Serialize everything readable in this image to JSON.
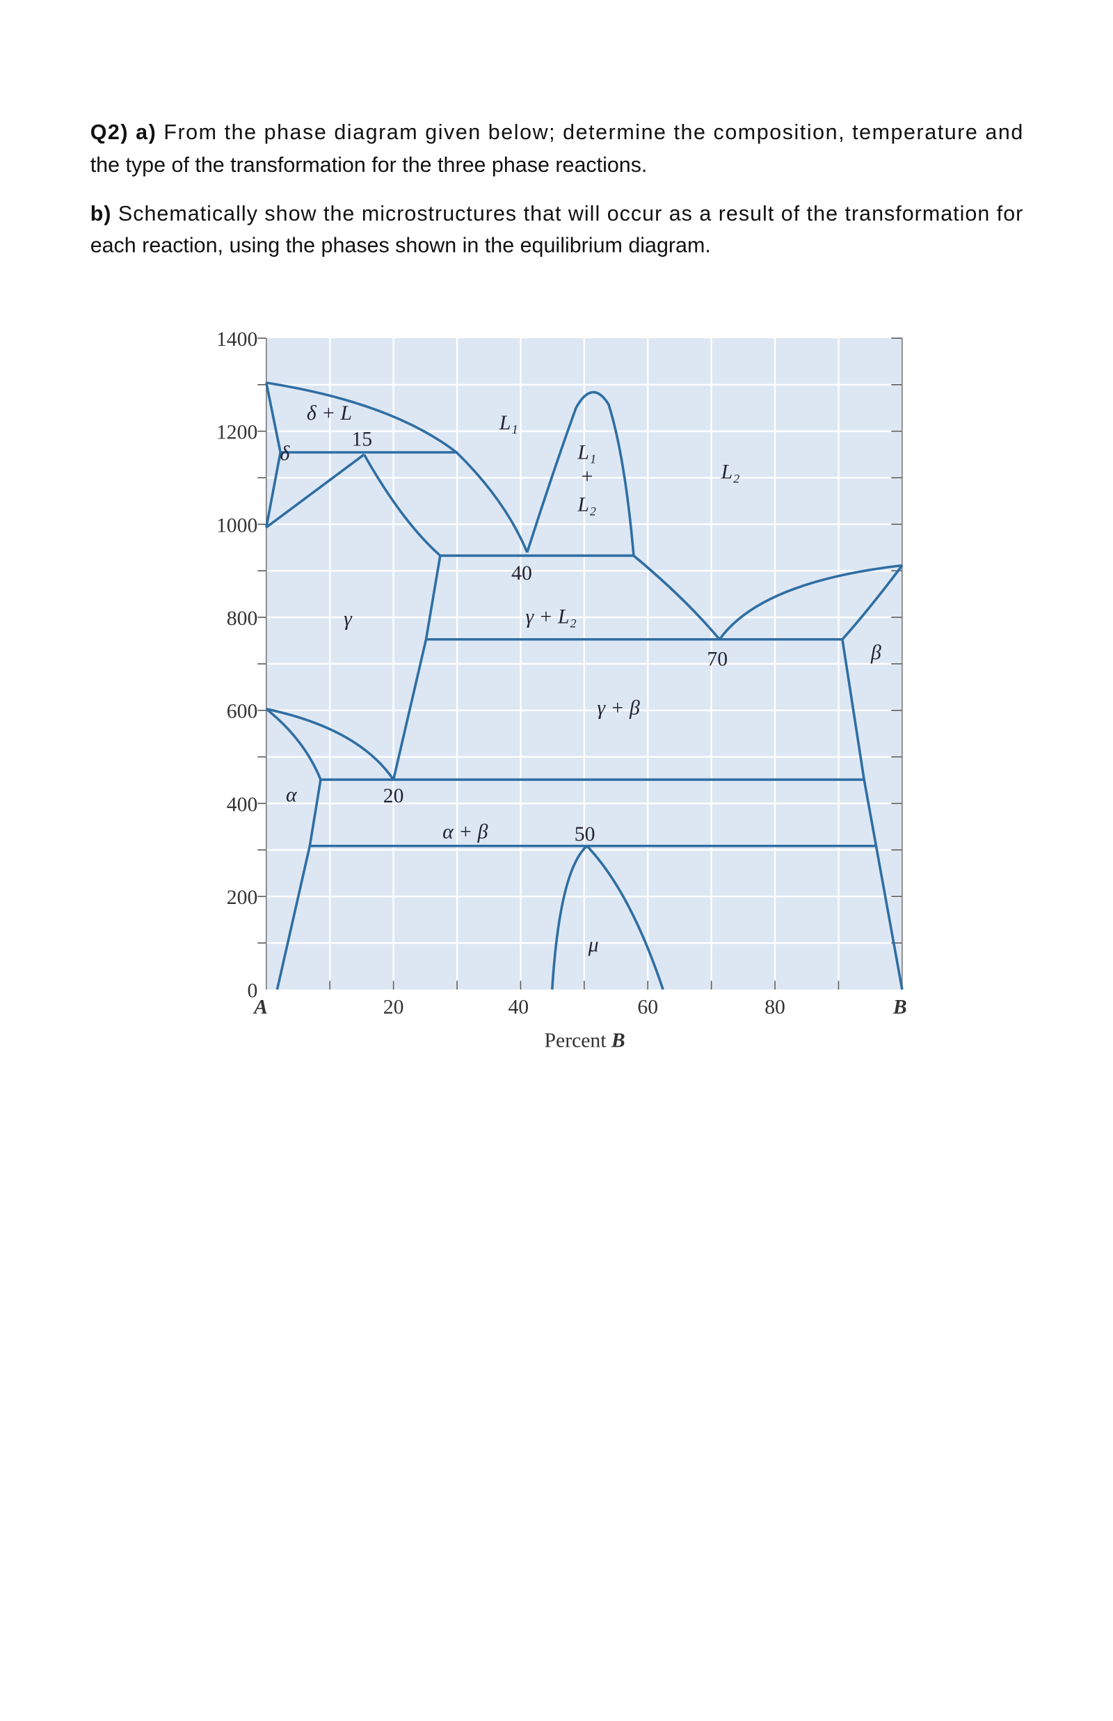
{
  "question": {
    "part_a": {
      "label": "Q2) a)",
      "lines": [
        "From the phase diagram given below; determine the composition, temperature and",
        "the type of the transformation for the three phase reactions."
      ]
    },
    "part_b": {
      "label": "b)",
      "lines": [
        "Schematically show the microstructures that will occur as a result of the transformation for",
        "each reaction, using the phases shown in the equilibrium diagram."
      ]
    }
  },
  "diagram": {
    "y_axis_ticks": [
      "1400",
      "1200",
      "1000",
      "800",
      "600",
      "400",
      "200",
      "0"
    ],
    "x_axis_ticks": [
      "A",
      "20",
      "40",
      "60",
      "80",
      "B"
    ],
    "x_axis_title": {
      "text": "Percent",
      "variable": "B"
    },
    "phase_labels": [
      "δ + L",
      "δ",
      "L₁",
      "L₁",
      "+",
      "L₂",
      "L₂",
      "γ",
      "γ + L₂",
      "γ + β",
      "β",
      "α",
      "α + β",
      "μ"
    ],
    "point_labels": [
      "15",
      "40",
      "70",
      "20",
      "50"
    ]
  }
}
